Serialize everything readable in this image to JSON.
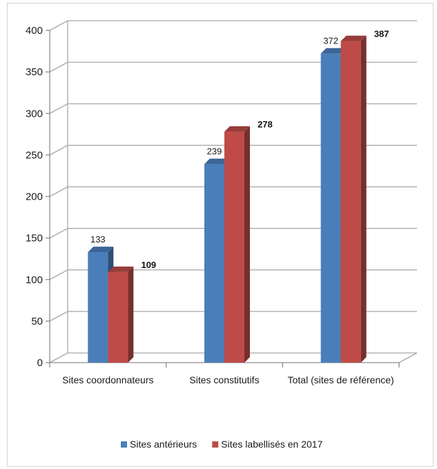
{
  "chart_data": {
    "type": "bar",
    "categories": [
      "Sites coordonnateurs",
      "Sites constitutifs",
      "Total (sites de référence)"
    ],
    "series": [
      {
        "name": "Sites antérieurs",
        "values": [
          133,
          239,
          372
        ],
        "color": "#4a7ebb"
      },
      {
        "name": "Sites labellisés en 2017",
        "values": [
          109,
          278,
          387
        ],
        "color": "#be4b48"
      }
    ],
    "title": "",
    "xlabel": "",
    "ylabel": "",
    "ylim": [
      0,
      400
    ],
    "yticks": [
      0,
      50,
      100,
      150,
      200,
      250,
      300,
      350,
      400
    ],
    "grid": true,
    "legend": "bottom",
    "style": "3d"
  }
}
